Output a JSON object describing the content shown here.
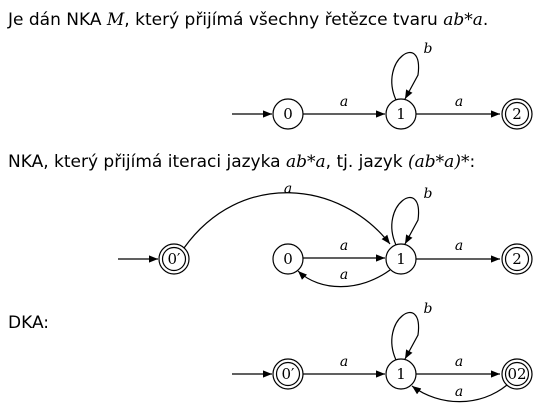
{
  "texts": {
    "intro_prefix": "Je dán NKA ",
    "intro_M": "M",
    "intro_middle": ", který přijímá všechny řetězce tvaru ",
    "intro_expr": "ab*a",
    "intro_suffix": ".",
    "iter_prefix": "NKA, který přijímá iteraci jazyka ",
    "iter_expr1": "ab*a",
    "iter_middle": ", tj. jazyk ",
    "iter_expr2": "(ab*a)*",
    "iter_suffix": ":",
    "dka_heading": "DKA:"
  },
  "automata": {
    "nka_m": {
      "states": [
        {
          "id": "s0",
          "label": "0",
          "final": false,
          "initial": true
        },
        {
          "id": "s1",
          "label": "1",
          "final": false,
          "initial": false
        },
        {
          "id": "s2",
          "label": "2",
          "final": true,
          "initial": false
        }
      ],
      "transitions": [
        {
          "from": "s0",
          "to": "s1",
          "symbol": "a"
        },
        {
          "from": "s1",
          "to": "s1",
          "symbol": "b"
        },
        {
          "from": "s1",
          "to": "s2",
          "symbol": "a"
        }
      ]
    },
    "nka_iteration": {
      "states": [
        {
          "id": "s0p",
          "label": "0′",
          "final": true,
          "initial": true
        },
        {
          "id": "s0",
          "label": "0",
          "final": false,
          "initial": false
        },
        {
          "id": "s1",
          "label": "1",
          "final": false,
          "initial": false
        },
        {
          "id": "s2",
          "label": "2",
          "final": true,
          "initial": false
        }
      ],
      "transitions": [
        {
          "from": "s0p",
          "to": "s1",
          "symbol": "a"
        },
        {
          "from": "s0",
          "to": "s1",
          "symbol": "a"
        },
        {
          "from": "s1",
          "to": "s0",
          "symbol": "a"
        },
        {
          "from": "s1",
          "to": "s1",
          "symbol": "b"
        },
        {
          "from": "s1",
          "to": "s2",
          "symbol": "a"
        }
      ]
    },
    "dka": {
      "states": [
        {
          "id": "s0p",
          "label": "0′",
          "final": true,
          "initial": true
        },
        {
          "id": "s1",
          "label": "1",
          "final": false,
          "initial": false
        },
        {
          "id": "s02",
          "label": "02",
          "final": true,
          "initial": false
        }
      ],
      "transitions": [
        {
          "from": "s0p",
          "to": "s1",
          "symbol": "a"
        },
        {
          "from": "s1",
          "to": "s1",
          "symbol": "b"
        },
        {
          "from": "s1",
          "to": "s02",
          "symbol": "a"
        },
        {
          "from": "s02",
          "to": "s1",
          "symbol": "a"
        }
      ]
    }
  }
}
